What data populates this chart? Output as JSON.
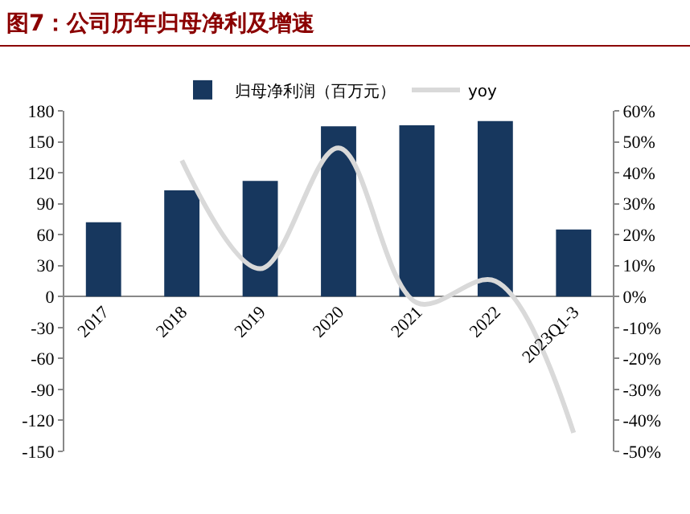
{
  "chart_data": {
    "type": "bar",
    "title": "图7：公司历年归母净利及增速",
    "categories": [
      "2017",
      "2018",
      "2019",
      "2020",
      "2021",
      "2022",
      "2023Q1-3"
    ],
    "series": [
      {
        "name": "归母净利润（百万元）",
        "color": "#17375e",
        "values": [
          72,
          103,
          112,
          165,
          166,
          170,
          65
        ]
      },
      {
        "name": "yoy",
        "type": "line",
        "axis": "y2",
        "color": "#d9d9d9",
        "values": [
          null,
          44,
          9,
          48,
          -2,
          5,
          -44
        ]
      }
    ],
    "ylim": [
      -150,
      180
    ],
    "yticks": [
      -150,
      -120,
      -90,
      -60,
      -30,
      0,
      30,
      60,
      90,
      120,
      150,
      180
    ],
    "y2lim": [
      -50,
      60
    ],
    "y2ticks": [
      {
        "value": -50,
        "label": "-50%"
      },
      {
        "value": -40,
        "label": "-40%"
      },
      {
        "value": -30,
        "label": "-30%"
      },
      {
        "value": -20,
        "label": "-20%"
      },
      {
        "value": -10,
        "label": "-10%"
      },
      {
        "value": 0,
        "label": "0%"
      },
      {
        "value": 10,
        "label": "10%"
      },
      {
        "value": 20,
        "label": "20%"
      },
      {
        "value": 30,
        "label": "30%"
      },
      {
        "value": 40,
        "label": "40%"
      },
      {
        "value": 50,
        "label": "50%"
      },
      {
        "value": 60,
        "label": "60%"
      }
    ],
    "grid": false,
    "legend": "top"
  }
}
